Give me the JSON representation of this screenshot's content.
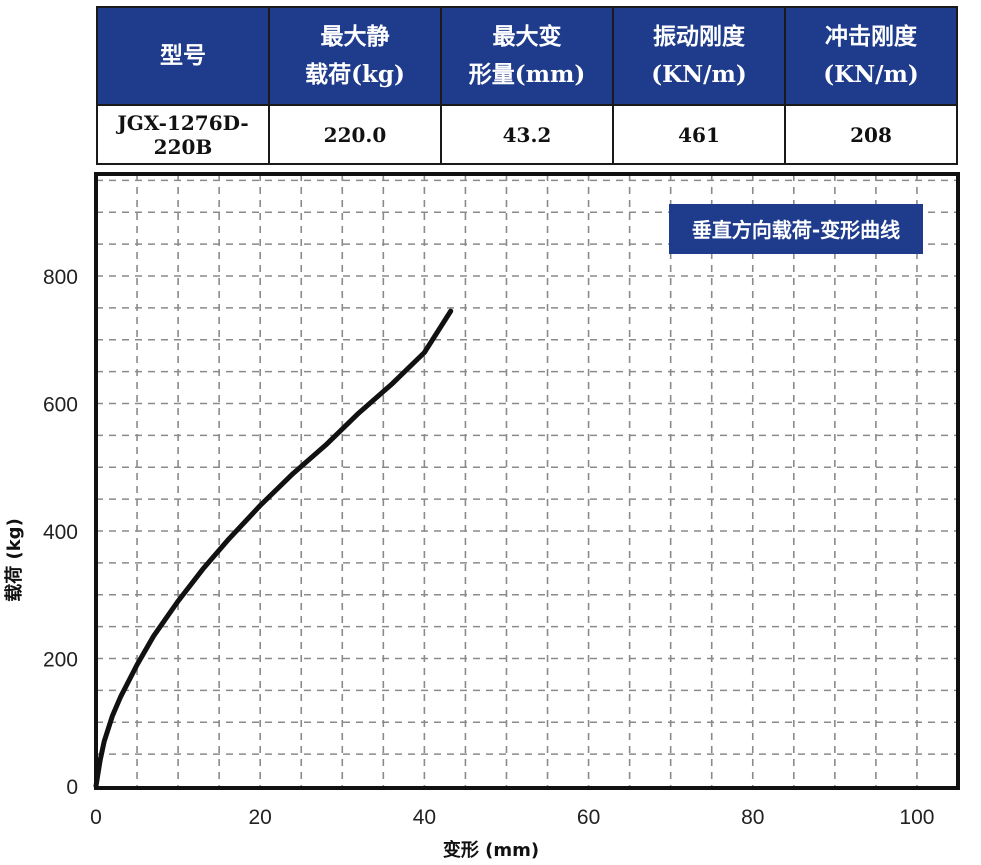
{
  "spec_table": {
    "headers": [
      {
        "lines": [
          "型号"
        ]
      },
      {
        "lines": [
          "最大静",
          "载荷(kg)"
        ]
      },
      {
        "lines": [
          "最大变",
          "形量(mm)"
        ]
      },
      {
        "lines": [
          "振动刚度",
          "(KN/m)"
        ]
      },
      {
        "lines": [
          "冲击刚度",
          "(KN/m)"
        ]
      }
    ],
    "row": [
      "JGX-1276D-220B",
      "220.0",
      "43.2",
      "461",
      "208"
    ],
    "header_color": "#1f3c8c"
  },
  "chart_data": {
    "type": "line",
    "title": "垂直方向载荷-变形曲线",
    "xlabel": "变形 (mm)",
    "ylabel": "载荷 (kg)",
    "xlim": [
      0,
      105
    ],
    "ylim": [
      0,
      960
    ],
    "x_ticks": [
      0,
      20,
      40,
      60,
      80,
      100
    ],
    "y_ticks": [
      0,
      200,
      400,
      600,
      800
    ],
    "grid": true,
    "legend": "none",
    "title_box_color": "#1f3c8c",
    "series": [
      {
        "color": "#111111",
        "points": [
          [
            0,
            0
          ],
          [
            0.5,
            40
          ],
          [
            1,
            70
          ],
          [
            2,
            110
          ],
          [
            3,
            140
          ],
          [
            5,
            190
          ],
          [
            7,
            235
          ],
          [
            10,
            290
          ],
          [
            13,
            340
          ],
          [
            16,
            385
          ],
          [
            20,
            440
          ],
          [
            24,
            490
          ],
          [
            28,
            535
          ],
          [
            32,
            585
          ],
          [
            36,
            630
          ],
          [
            40,
            680
          ],
          [
            43.2,
            745
          ]
        ]
      }
    ]
  }
}
